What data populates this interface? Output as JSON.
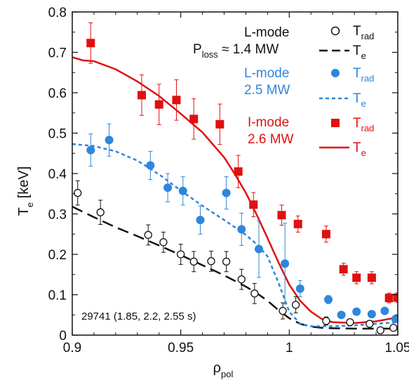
{
  "chart_data": {
    "type": "scatter",
    "xlabel": "ρ",
    "xlabel_sub": "pol",
    "ylabel": "T",
    "ylabel_sub": "e",
    "ylabel_unit": " [keV]",
    "xlim": [
      0.9,
      1.05
    ],
    "ylim": [
      0,
      0.8
    ],
    "xticks": [
      0.9,
      0.95,
      1.0,
      1.05
    ],
    "xtick_labels": [
      "0.9",
      "0.95",
      "1",
      "1.05"
    ],
    "yticks": [
      0,
      0.1,
      0.2,
      0.3,
      0.4,
      0.5,
      0.6,
      0.7,
      0.8
    ],
    "ytick_labels": [
      "0",
      "0.1",
      "0.2",
      "0.3",
      "0.4",
      "0.5",
      "0.6",
      "0.7",
      "0.8"
    ],
    "annotation": "29741 (1.85,  2.2, 2.55 s)",
    "legend": {
      "placement": "top-right",
      "groups": [
        {
          "title_line1": "L-mode",
          "title_line2_prefix": "P",
          "title_line2_sub": "loss",
          "title_line2_suffix": " ≈ 1.4 MW",
          "color": "#111111"
        },
        {
          "title_line1": "L-mode",
          "title_line2": "2.5 MW",
          "color": "#2e86de"
        },
        {
          "title_line1": "I-mode",
          "title_line2": "2.6 MW",
          "color": "#e01010"
        }
      ],
      "entry_trad_main": "T",
      "entry_trad_sub": "rad",
      "entry_te_main": "T",
      "entry_te_sub": "e"
    },
    "series": [
      {
        "name": "L-mode 1.4 MW T_rad",
        "color": "#111111",
        "marker": "open-circle",
        "points": [
          {
            "x": 0.9025,
            "y": 0.352,
            "err": 0.03
          },
          {
            "x": 0.913,
            "y": 0.304,
            "err": 0.03
          },
          {
            "x": 0.935,
            "y": 0.248,
            "err": 0.025
          },
          {
            "x": 0.942,
            "y": 0.23,
            "err": 0.025
          },
          {
            "x": 0.95,
            "y": 0.2,
            "err": 0.025
          },
          {
            "x": 0.956,
            "y": 0.182,
            "err": 0.025
          },
          {
            "x": 0.964,
            "y": 0.183,
            "err": 0.025
          },
          {
            "x": 0.971,
            "y": 0.182,
            "err": 0.025
          },
          {
            "x": 0.978,
            "y": 0.138,
            "err": 0.025
          },
          {
            "x": 0.984,
            "y": 0.103,
            "err": 0.025
          },
          {
            "x": 0.997,
            "y": 0.06,
            "err": 0.02
          },
          {
            "x": 1.003,
            "y": 0.075,
            "err": 0.02
          },
          {
            "x": 1.017,
            "y": 0.035,
            "err": 0.01
          },
          {
            "x": 1.028,
            "y": 0.032,
            "err": 0.008
          },
          {
            "x": 1.037,
            "y": 0.028,
            "err": 0.008
          },
          {
            "x": 1.042,
            "y": 0.012,
            "err": 0.005
          },
          {
            "x": 1.048,
            "y": 0.018,
            "err": 0.005
          }
        ]
      },
      {
        "name": "L-mode 2.5 MW T_rad",
        "color": "#2e86de",
        "marker": "filled-circle",
        "points": [
          {
            "x": 0.9085,
            "y": 0.458,
            "err": 0.04
          },
          {
            "x": 0.917,
            "y": 0.483,
            "err": 0.04
          },
          {
            "x": 0.936,
            "y": 0.42,
            "err": 0.035
          },
          {
            "x": 0.944,
            "y": 0.365,
            "err": 0.035
          },
          {
            "x": 0.951,
            "y": 0.357,
            "err": 0.035
          },
          {
            "x": 0.959,
            "y": 0.285,
            "err": 0.035
          },
          {
            "x": 0.971,
            "y": 0.352,
            "err": 0.04
          },
          {
            "x": 0.978,
            "y": 0.262,
            "err": 0.04
          },
          {
            "x": 0.986,
            "y": 0.213,
            "err": 0.07
          },
          {
            "x": 0.998,
            "y": 0.177,
            "err": 0.1
          },
          {
            "x": 1.005,
            "y": 0.115,
            "err": 0.02
          },
          {
            "x": 1.018,
            "y": 0.088,
            "err": 0.01
          },
          {
            "x": 1.024,
            "y": 0.05,
            "err": 0.008
          },
          {
            "x": 1.031,
            "y": 0.058,
            "err": 0.008
          },
          {
            "x": 1.038,
            "y": 0.052,
            "err": 0.008
          },
          {
            "x": 1.044,
            "y": 0.06,
            "err": 0.008
          },
          {
            "x": 1.049,
            "y": 0.04,
            "err": 0.008
          }
        ]
      },
      {
        "name": "I-mode 2.6 MW T_rad",
        "color": "#e01010",
        "marker": "filled-square",
        "points": [
          {
            "x": 0.9085,
            "y": 0.723,
            "err": 0.05
          },
          {
            "x": 0.932,
            "y": 0.594,
            "err": 0.05
          },
          {
            "x": 0.94,
            "y": 0.571,
            "err": 0.05
          },
          {
            "x": 0.948,
            "y": 0.582,
            "err": 0.05
          },
          {
            "x": 0.956,
            "y": 0.535,
            "err": 0.05
          },
          {
            "x": 0.968,
            "y": 0.522,
            "err": 0.05
          },
          {
            "x": 0.9765,
            "y": 0.405,
            "err": 0.04
          },
          {
            "x": 0.9835,
            "y": 0.323,
            "err": 0.03
          },
          {
            "x": 0.9965,
            "y": 0.297,
            "err": 0.025
          },
          {
            "x": 1.004,
            "y": 0.275,
            "err": 0.02
          },
          {
            "x": 1.017,
            "y": 0.25,
            "err": 0.02
          },
          {
            "x": 1.025,
            "y": 0.163,
            "err": 0.015
          },
          {
            "x": 1.031,
            "y": 0.142,
            "err": 0.015
          },
          {
            "x": 1.038,
            "y": 0.142,
            "err": 0.015
          },
          {
            "x": 1.046,
            "y": 0.092,
            "err": 0.012
          },
          {
            "x": 1.05,
            "y": 0.093,
            "err": 0.012
          }
        ]
      }
    ],
    "fits": [
      {
        "name": "L-mode 1.4 MW T_e",
        "color": "#111111",
        "style": "long-dash",
        "x": [
          0.9,
          0.91,
          0.92,
          0.93,
          0.94,
          0.95,
          0.96,
          0.97,
          0.98,
          0.985,
          0.99,
          0.995,
          1.0,
          1.005,
          1.01,
          1.015,
          1.02,
          1.03,
          1.04,
          1.05
        ],
        "y": [
          0.318,
          0.292,
          0.267,
          0.245,
          0.222,
          0.198,
          0.173,
          0.148,
          0.12,
          0.104,
          0.085,
          0.062,
          0.042,
          0.028,
          0.021,
          0.018,
          0.017,
          0.016,
          0.016,
          0.016
        ]
      },
      {
        "name": "L-mode 2.5 MW T_e",
        "color": "#2e86de",
        "style": "short-dash",
        "x": [
          0.9,
          0.91,
          0.92,
          0.93,
          0.94,
          0.95,
          0.96,
          0.97,
          0.98,
          0.985,
          0.99,
          0.995,
          1.0,
          1.005,
          1.01,
          1.02,
          1.03,
          1.04,
          1.05
        ],
        "y": [
          0.473,
          0.468,
          0.455,
          0.432,
          0.398,
          0.358,
          0.32,
          0.285,
          0.248,
          0.225,
          0.195,
          0.13,
          0.058,
          0.028,
          0.022,
          0.022,
          0.024,
          0.028,
          0.032
        ]
      },
      {
        "name": "I-mode 2.6 MW T_e",
        "color": "#e01010",
        "style": "solid",
        "x": [
          0.9,
          0.905,
          0.91,
          0.92,
          0.93,
          0.94,
          0.95,
          0.96,
          0.97,
          0.975,
          0.98,
          0.985,
          0.99,
          0.995,
          1.0,
          1.005,
          1.01,
          1.015,
          1.02,
          1.03,
          1.04,
          1.05
        ],
        "y": [
          0.688,
          0.68,
          0.678,
          0.658,
          0.628,
          0.592,
          0.548,
          0.502,
          0.44,
          0.398,
          0.352,
          0.298,
          0.24,
          0.18,
          0.125,
          0.085,
          0.058,
          0.04,
          0.032,
          0.03,
          0.034,
          0.044
        ]
      }
    ]
  }
}
